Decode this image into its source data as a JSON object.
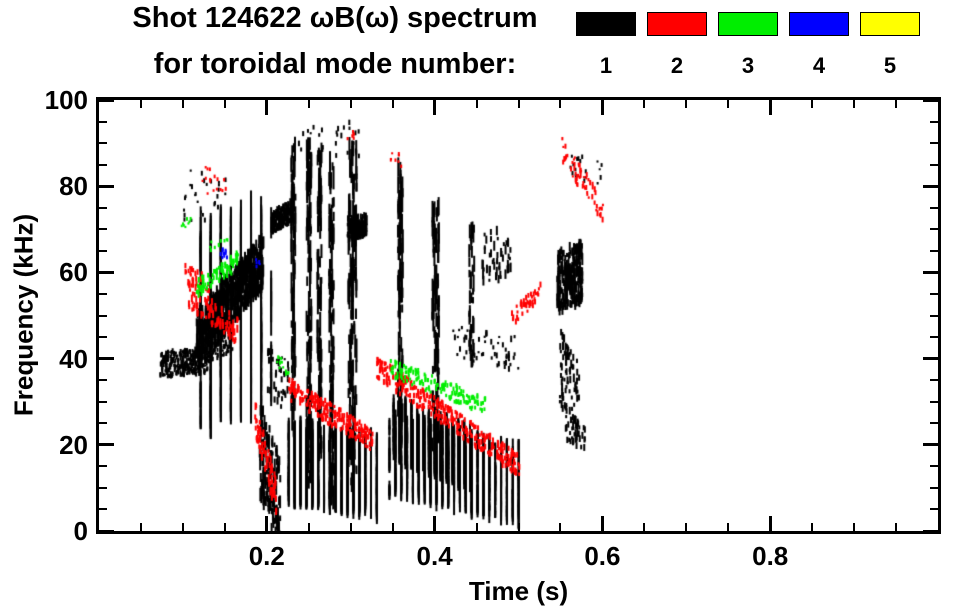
{
  "title": {
    "line1": "Shot 124622 ωB(ω) spectrum",
    "line2": "for toroidal mode number:"
  },
  "legend": {
    "modes": [
      {
        "label": "1",
        "color": "#000000"
      },
      {
        "label": "2",
        "color": "#ff0000"
      },
      {
        "label": "3",
        "color": "#00ee00"
      },
      {
        "label": "4",
        "color": "#0000ff"
      },
      {
        "label": "5",
        "color": "#ffff00"
      }
    ]
  },
  "chart_data": {
    "type": "scatter",
    "title": "Shot 124622 ωB(ω) spectrum for toroidal mode number:",
    "xlabel": "Time (s)",
    "ylabel": "Frequency (kHz)",
    "xlim": [
      0,
      1.0
    ],
    "ylim": [
      0,
      100
    ],
    "x_major_ticks": [
      0.2,
      0.4,
      0.6,
      0.8
    ],
    "x_tick_labels": [
      "0.2",
      "0.4",
      "0.6",
      "0.8"
    ],
    "x_minor_step": 0.05,
    "y_major_ticks": [
      0,
      20,
      40,
      60,
      80,
      100
    ],
    "y_tick_labels": [
      "0",
      "20",
      "40",
      "60",
      "80",
      "100"
    ],
    "y_minor_step": 5,
    "grid": false,
    "legend_position": "top-right",
    "marker": "vertical-dash",
    "series": [
      {
        "name": "n=1",
        "color": "#000000",
        "clusters": [
          {
            "t": [
              0.072,
              0.128
            ],
            "f": [
              38.5,
              39.5
            ],
            "s": 3,
            "n": 280,
            "h": [
              2,
              6
            ]
          },
          {
            "t": [
              0.125,
              0.158
            ],
            "f": [
              41,
              43.5
            ],
            "s": 2,
            "n": 80,
            "h": [
              2,
              5
            ]
          },
          {
            "t": [
              0.115,
              0.195
            ],
            "f": [
              44,
              63
            ],
            "s": 6,
            "n": 720,
            "h": [
              4,
              14
            ]
          },
          {
            "t": [
              0.12,
              0.2
            ],
            "f": [
              48,
              52
            ],
            "s": 24,
            "n": 460,
            "h": [
              8,
              36
            ],
            "q": 0.012
          },
          {
            "t": [
              0.1,
              0.15
            ],
            "f": [
              78,
              78
            ],
            "s": 6,
            "n": 28,
            "h": [
              2,
              5
            ]
          },
          {
            "t": [
              0.205,
              0.23
            ],
            "f": [
              71.5,
              74.5
            ],
            "s": 2.5,
            "n": 220,
            "h": [
              3,
              7
            ]
          },
          {
            "t": [
              0.19,
              0.215
            ],
            "f": [
              20,
              5
            ],
            "s": 11,
            "n": 160,
            "h": [
              4,
              14
            ]
          },
          {
            "t": [
              0.2,
              0.225
            ],
            "f": [
              38,
              33
            ],
            "s": 6,
            "n": 40,
            "h": [
              2,
              8
            ]
          },
          {
            "t": [
              0.225,
              0.33
            ],
            "f": [
              16,
              13
            ],
            "s": 9,
            "n": 950,
            "h": [
              6,
              22
            ],
            "q": 0.007
          },
          {
            "t": [
              0.225,
              0.33
            ],
            "f": [
              9,
              8
            ],
            "s": 3,
            "n": 300,
            "h": [
              4,
              10
            ],
            "q": 0.007
          },
          {
            "t": [
              0.228,
              0.233
            ],
            "f": [
              55,
              55
            ],
            "s": 34,
            "n": 90,
            "h": [
              6,
              26
            ]
          },
          {
            "t": [
              0.246,
              0.252
            ],
            "f": [
              50,
              50
            ],
            "s": 40,
            "n": 120,
            "h": [
              6,
              26
            ]
          },
          {
            "t": [
              0.259,
              0.264
            ],
            "f": [
              52,
              52
            ],
            "s": 36,
            "n": 100,
            "h": [
              6,
              24
            ]
          },
          {
            "t": [
              0.273,
              0.279
            ],
            "f": [
              46,
              46
            ],
            "s": 40,
            "n": 110,
            "h": [
              6,
              24
            ]
          },
          {
            "t": [
              0.296,
              0.306
            ],
            "f": [
              50,
              50
            ],
            "s": 40,
            "n": 140,
            "h": [
              6,
              26
            ]
          },
          {
            "t": [
              0.295,
              0.318
            ],
            "f": [
              70,
              71
            ],
            "s": 2.5,
            "n": 180,
            "h": [
              3,
              7
            ]
          },
          {
            "t": [
              0.23,
              0.31
            ],
            "f": [
              91,
              91
            ],
            "s": 4,
            "n": 26,
            "h": [
              2,
              6
            ]
          },
          {
            "t": [
              0.345,
              0.5
            ],
            "f": [
              18,
              11
            ],
            "s": 9,
            "n": 1100,
            "h": [
              5,
              18
            ],
            "q": 0.007
          },
          {
            "t": [
              0.35,
              0.44
            ],
            "f": [
              24,
              17
            ],
            "s": 7,
            "n": 650,
            "h": [
              5,
              16
            ],
            "q": 0.007
          },
          {
            "t": [
              0.355,
              0.361
            ],
            "f": [
              55,
              55
            ],
            "s": 30,
            "n": 85,
            "h": [
              6,
              24
            ]
          },
          {
            "t": [
              0.396,
              0.404
            ],
            "f": [
              48,
              48
            ],
            "s": 28,
            "n": 95,
            "h": [
              6,
              24
            ]
          },
          {
            "t": [
              0.44,
              0.446
            ],
            "f": [
              55,
              55
            ],
            "s": 16,
            "n": 40,
            "h": [
              5,
              18
            ]
          },
          {
            "t": [
              0.42,
              0.5
            ],
            "f": [
              44,
              41
            ],
            "s": 4,
            "n": 60,
            "h": [
              2,
              6
            ]
          },
          {
            "t": [
              0.455,
              0.49
            ],
            "f": [
              64,
              64
            ],
            "s": 6,
            "n": 50,
            "h": [
              3,
              10
            ]
          },
          {
            "t": [
              0.545,
              0.575
            ],
            "f": [
              58,
              60
            ],
            "s": 7,
            "n": 260,
            "h": [
              4,
              12
            ]
          },
          {
            "t": [
              0.548,
              0.572
            ],
            "f": [
              38,
              30
            ],
            "s": 9,
            "n": 90,
            "h": [
              3,
              9
            ]
          },
          {
            "t": [
              0.555,
              0.578
            ],
            "f": [
              24,
              21
            ],
            "s": 3,
            "n": 30,
            "h": [
              3,
              7
            ]
          },
          {
            "t": [
              0.56,
              0.6
            ],
            "f": [
              85,
              83
            ],
            "s": 3,
            "n": 18,
            "h": [
              2,
              5
            ]
          }
        ]
      },
      {
        "name": "n=2",
        "color": "#ff0000",
        "clusters": [
          {
            "t": [
              0.105,
              0.165
            ],
            "f": [
              55,
              46
            ],
            "s": 3,
            "n": 90,
            "h": [
              3,
              8
            ]
          },
          {
            "t": [
              0.1,
              0.13
            ],
            "f": [
              60,
              57
            ],
            "s": 2,
            "n": 30,
            "h": [
              3,
              6
            ]
          },
          {
            "t": [
              0.12,
              0.155
            ],
            "f": [
              82,
              79
            ],
            "s": 3,
            "n": 16,
            "h": [
              2,
              4
            ]
          },
          {
            "t": [
              0.185,
              0.21
            ],
            "f": [
              26,
              8
            ],
            "s": 4,
            "n": 80,
            "h": [
              3,
              8
            ]
          },
          {
            "t": [
              0.225,
              0.325
            ],
            "f": [
              33,
              21
            ],
            "s": 2.5,
            "n": 220,
            "h": [
              3,
              6
            ]
          },
          {
            "t": [
              0.33,
              0.5
            ],
            "f": [
              38,
              15
            ],
            "s": 2.5,
            "n": 330,
            "h": [
              3,
              6
            ]
          },
          {
            "t": [
              0.49,
              0.525
            ],
            "f": [
              49,
              56
            ],
            "s": 2,
            "n": 40,
            "h": [
              3,
              6
            ]
          },
          {
            "t": [
              0.55,
              0.6
            ],
            "f": [
              89,
              74
            ],
            "s": 3,
            "n": 60,
            "h": [
              2,
              6
            ]
          },
          {
            "t": [
              0.295,
              0.305
            ],
            "f": [
              92,
              92
            ],
            "s": 1,
            "n": 6,
            "h": [
              2,
              4
            ]
          },
          {
            "t": [
              0.345,
              0.36
            ],
            "f": [
              87,
              86
            ],
            "s": 1.5,
            "n": 8,
            "h": [
              2,
              4
            ]
          }
        ]
      },
      {
        "name": "n=3",
        "color": "#00ee00",
        "clusters": [
          {
            "t": [
              0.115,
              0.165
            ],
            "f": [
              56,
              63
            ],
            "s": 2,
            "n": 80,
            "h": [
              3,
              6
            ]
          },
          {
            "t": [
              0.095,
              0.108
            ],
            "f": [
              71,
              72
            ],
            "s": 1,
            "n": 8,
            "h": [
              2,
              4
            ]
          },
          {
            "t": [
              0.13,
              0.152
            ],
            "f": [
              66,
              67
            ],
            "s": 1,
            "n": 10,
            "h": [
              2,
              4
            ]
          },
          {
            "t": [
              0.345,
              0.46
            ],
            "f": [
              38,
              29
            ],
            "s": 2,
            "n": 150,
            "h": [
              3,
              5
            ]
          },
          {
            "t": [
              0.21,
              0.225
            ],
            "f": [
              40,
              37
            ],
            "s": 1.5,
            "n": 14,
            "h": [
              2,
              4
            ]
          }
        ]
      },
      {
        "name": "n=4",
        "color": "#0000ff",
        "clusters": [
          {
            "t": [
              0.142,
              0.152
            ],
            "f": [
              64,
              64
            ],
            "s": 1.5,
            "n": 10,
            "h": [
              3,
              5
            ]
          },
          {
            "t": [
              0.186,
              0.192
            ],
            "f": [
              62,
              62
            ],
            "s": 1,
            "n": 5,
            "h": [
              2,
              4
            ]
          }
        ]
      },
      {
        "name": "n=5",
        "color": "#ffff00",
        "clusters": []
      }
    ]
  }
}
